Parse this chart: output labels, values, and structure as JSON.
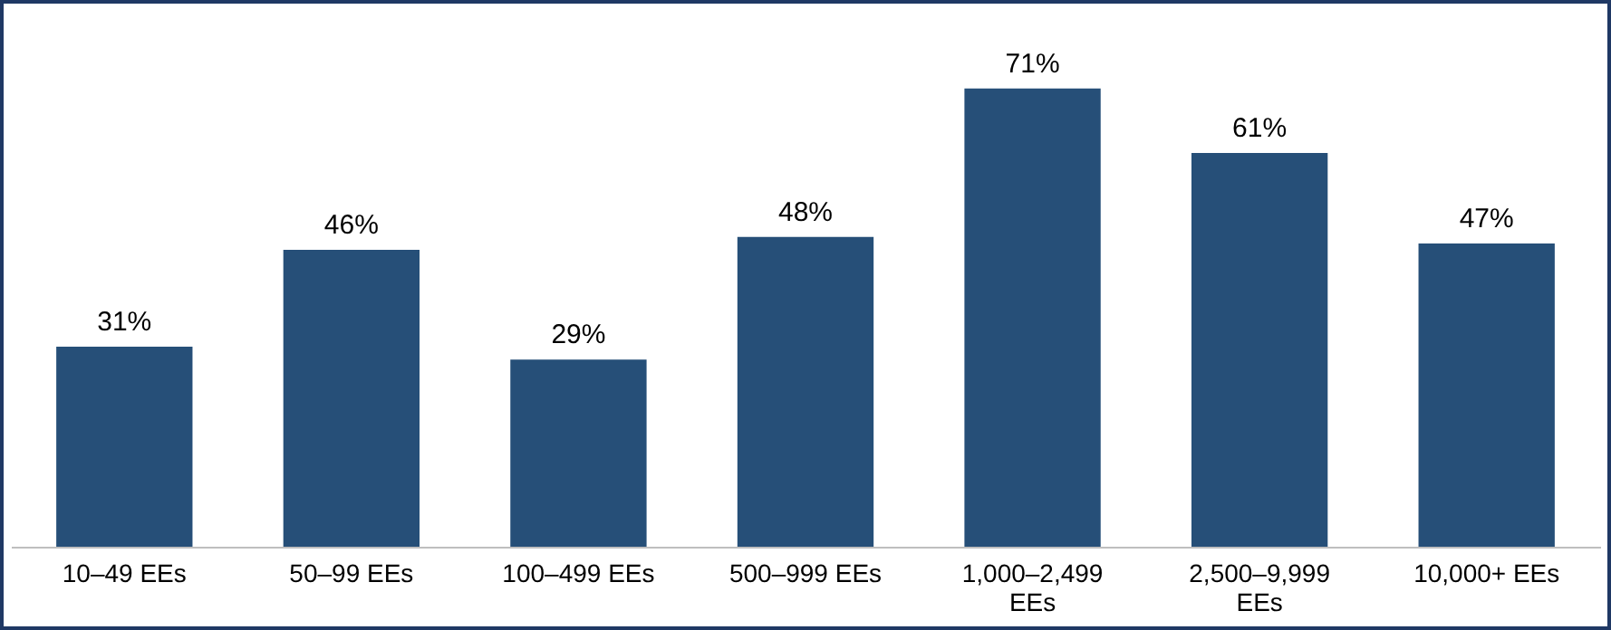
{
  "chart_data": {
    "type": "bar",
    "categories": [
      "10–49 EEs",
      "50–99 EEs",
      "100–499 EEs",
      "500–999 EEs",
      "1,000–2,499 EEs",
      "2,500–9,999 EEs",
      "10,000+ EEs"
    ],
    "values": [
      31,
      46,
      29,
      48,
      71,
      61,
      47
    ],
    "value_labels": [
      "31%",
      "46%",
      "29%",
      "48%",
      "71%",
      "61%",
      "47%"
    ],
    "color": "#264f78"
  }
}
